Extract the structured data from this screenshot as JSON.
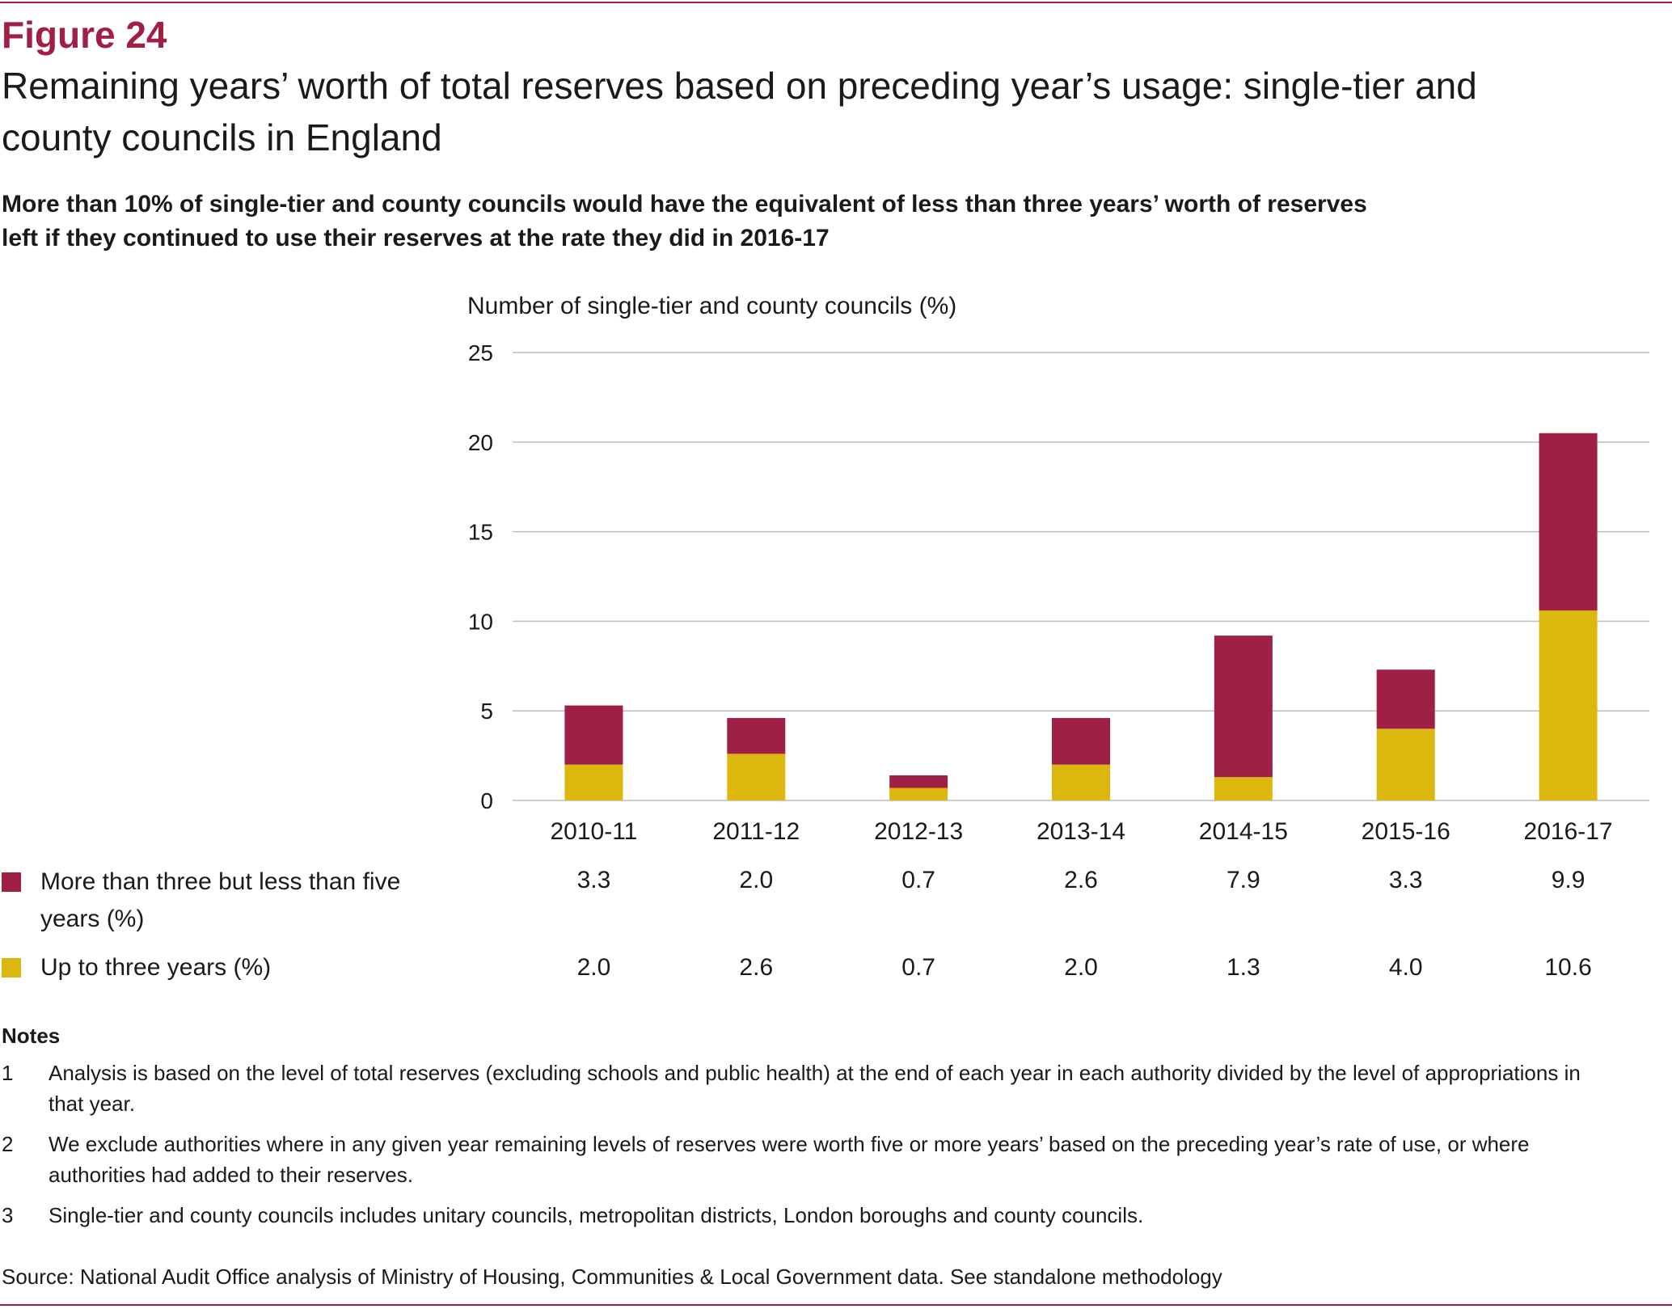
{
  "figure": {
    "number": "Figure 24",
    "title": "Remaining years’ worth of total reserves based on preceding year’s usage: single-tier and county councils in England",
    "subtitle": "More than 10% of single-tier and county councils would have the equivalent of less than three years’ worth of reserves left if they continued to use their reserves at the rate they did in 2016-17"
  },
  "chart_data": {
    "type": "bar",
    "stacked": true,
    "ylabel": "Number of single-tier and county councils (%)",
    "ylim": [
      0,
      25
    ],
    "yticks": [
      0,
      5,
      10,
      15,
      20,
      25
    ],
    "grid": true,
    "categories": [
      "2010-11",
      "2011-12",
      "2012-13",
      "2013-14",
      "2014-15",
      "2015-16",
      "2016-17"
    ],
    "series": [
      {
        "name": "Up to three years (%)",
        "color": "#dcb80f",
        "values": [
          2.0,
          2.6,
          0.7,
          2.0,
          1.3,
          4.0,
          10.6
        ],
        "labels": [
          "2.0",
          "2.6",
          "0.7",
          "2.0",
          "1.3",
          "4.0",
          "10.6"
        ]
      },
      {
        "name": "More than three but less than five years (%)",
        "color": "#a01f45",
        "values": [
          3.3,
          2.0,
          0.7,
          2.6,
          7.9,
          3.3,
          9.9
        ],
        "labels": [
          "3.3",
          "2.0",
          "0.7",
          "2.6",
          "7.9",
          "3.3",
          "9.9"
        ]
      }
    ]
  },
  "notes": {
    "heading": "Notes",
    "items": [
      {
        "number": "1",
        "text": "Analysis is based on the level of total reserves (excluding schools and public health) at the end of each year in each authority divided by the level of appropriations in that year."
      },
      {
        "number": "2",
        "text": "We exclude authorities where in any given year remaining levels of reserves were worth five or more years’ based on the preceding year’s rate of use, or where authorities had added to their reserves."
      },
      {
        "number": "3",
        "text": "Single-tier and county councils includes unitary councils, metropolitan districts, London boroughs and county councils."
      }
    ]
  },
  "source": "Source: National Audit Office analysis of Ministry of Housing, Communities & Local Government data. See standalone methodology"
}
